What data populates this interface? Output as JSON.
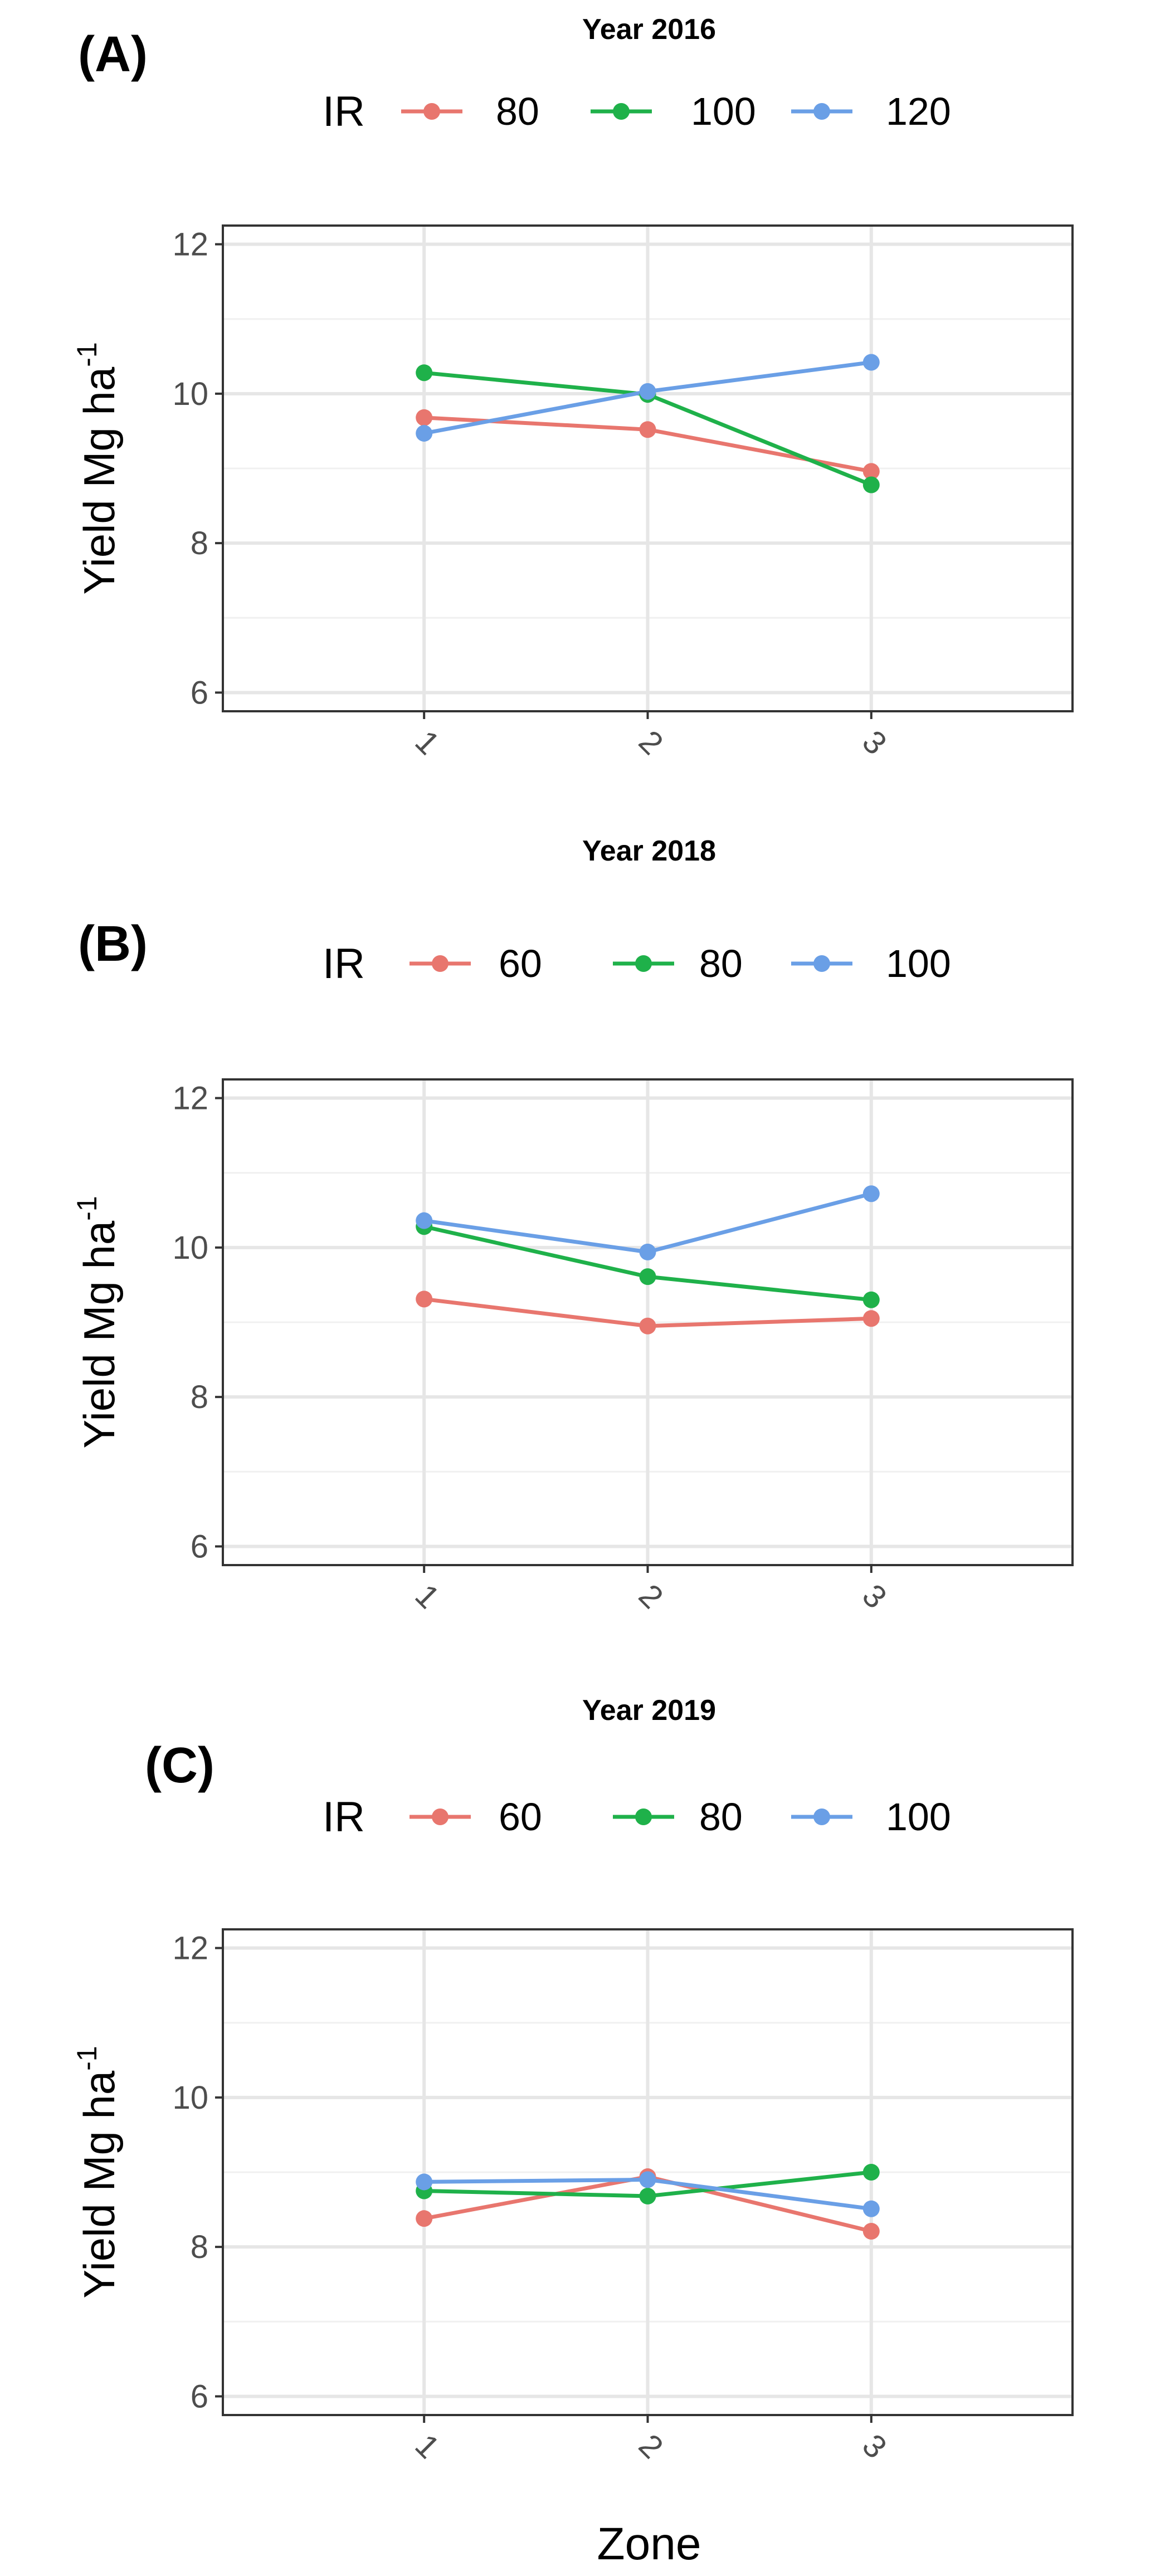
{
  "figure": {
    "xlabel": "Zone",
    "legend_title": "IR"
  },
  "chart_data": [
    {
      "type": "line",
      "panel_label": "(A)",
      "title": "Year 2016",
      "xlabel": "Zone",
      "ylabel": "Yield Mg ha",
      "ylabel_superscript": "-1",
      "categories": [
        "1",
        "2",
        "3"
      ],
      "ylim": [
        5.75,
        12.25
      ],
      "yticks": [
        "6",
        "8",
        "10",
        "12"
      ],
      "legend_title": "IR",
      "series": [
        {
          "name": "80",
          "color": "#E8766E",
          "values": [
            9.68,
            9.52,
            8.96
          ]
        },
        {
          "name": "100",
          "color": "#1FB14A",
          "values": [
            10.28,
            9.99,
            8.78
          ]
        },
        {
          "name": "120",
          "color": "#6A9FE6",
          "values": [
            9.47,
            10.03,
            10.42
          ]
        }
      ]
    },
    {
      "type": "line",
      "panel_label": "(B)",
      "title": "Year 2018",
      "xlabel": "Zone",
      "ylabel": "Yield Mg ha",
      "ylabel_superscript": "-1",
      "categories": [
        "1",
        "2",
        "3"
      ],
      "ylim": [
        5.75,
        12.25
      ],
      "yticks": [
        "6",
        "8",
        "10",
        "12"
      ],
      "legend_title": "IR",
      "series": [
        {
          "name": "60",
          "color": "#E8766E",
          "values": [
            9.31,
            8.95,
            9.05
          ]
        },
        {
          "name": "80",
          "color": "#1FB14A",
          "values": [
            10.28,
            9.61,
            9.3
          ]
        },
        {
          "name": "100",
          "color": "#6A9FE6",
          "values": [
            10.36,
            9.94,
            10.72
          ]
        }
      ]
    },
    {
      "type": "line",
      "panel_label": "(C)",
      "title": "Year 2019",
      "xlabel": "Zone",
      "ylabel": "Yield Mg ha",
      "ylabel_superscript": "-1",
      "categories": [
        "1",
        "2",
        "3"
      ],
      "ylim": [
        5.75,
        12.25
      ],
      "yticks": [
        "6",
        "8",
        "10",
        "12"
      ],
      "legend_title": "IR",
      "series": [
        {
          "name": "60",
          "color": "#E8766E",
          "values": [
            8.38,
            8.94,
            8.21
          ]
        },
        {
          "name": "80",
          "color": "#1FB14A",
          "values": [
            8.75,
            8.68,
            9.0
          ]
        },
        {
          "name": "100",
          "color": "#6A9FE6",
          "values": [
            8.87,
            8.9,
            8.51
          ]
        }
      ]
    }
  ]
}
